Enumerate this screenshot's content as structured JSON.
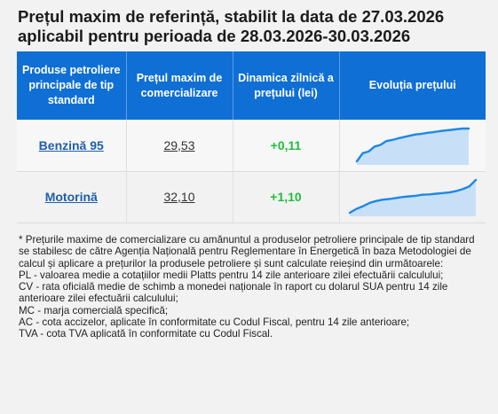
{
  "title": {
    "line1": "Prețul maxim de referință, stabilit la data de 27.03.2026",
    "line2": "aplicabil pentru perioada de 28.03.2026-30.03.2026"
  },
  "table": {
    "headers": [
      "Produse petroliere principale de tip standard",
      "Prețul maxim de comercializare",
      "Dinamica zilnică a prețului (lei)",
      "Evoluția prețului"
    ],
    "rows": [
      {
        "product": "Benzină 95",
        "price": "29,53",
        "change": "+0,11"
      },
      {
        "product": "Motorină",
        "price": "32,10",
        "change": "+1,10"
      }
    ]
  },
  "chart_data": [
    {
      "type": "area",
      "series": [
        {
          "values": [
            0.0,
            0.25,
            0.3,
            0.45,
            0.5,
            0.62,
            0.65,
            0.7,
            0.74,
            0.78,
            0.82,
            0.84,
            0.87,
            0.89,
            0.92,
            0.94,
            0.96,
            0.98,
            1.0,
            1.0
          ]
        }
      ],
      "color": "#1e88e5",
      "fill": "#c7e0f7"
    },
    {
      "type": "area",
      "series": [
        {
          "values": [
            0.0,
            0.12,
            0.2,
            0.3,
            0.36,
            0.4,
            0.42,
            0.45,
            0.48,
            0.5,
            0.52,
            0.55,
            0.56,
            0.58,
            0.6,
            0.62,
            0.66,
            0.72,
            0.8,
            1.0
          ]
        }
      ],
      "color": "#1e88e5",
      "fill": "#c7e0f7"
    }
  ],
  "notes": [
    "* Prețurile maxime de comercializare cu amănuntul a produselor petroliere principale de tip standard se stabilesc de către Agenția Națională pentru Reglementare în Energetică în baza Metodologiei de calcul și aplicare a prețurilor la produsele petroliere și sunt calculate reieșind din următoarele:",
    "PL - valoarea medie a cotațiilor medii Platts pentru 14 zile anterioare zilei efectuării calculului;",
    "CV - rata oficială medie de schimb a monedei naționale în raport cu dolarul SUA pentru 14 zile anterioare zilei efectuării calculului;",
    "MC - marja comercială specifică;",
    "AC - cota accizelor, aplicate în conformitate cu Codul Fiscal, pentru 14 zile anterioare;",
    "TVA - cota TVA aplicată în conformitate cu Codul Fiscal."
  ]
}
